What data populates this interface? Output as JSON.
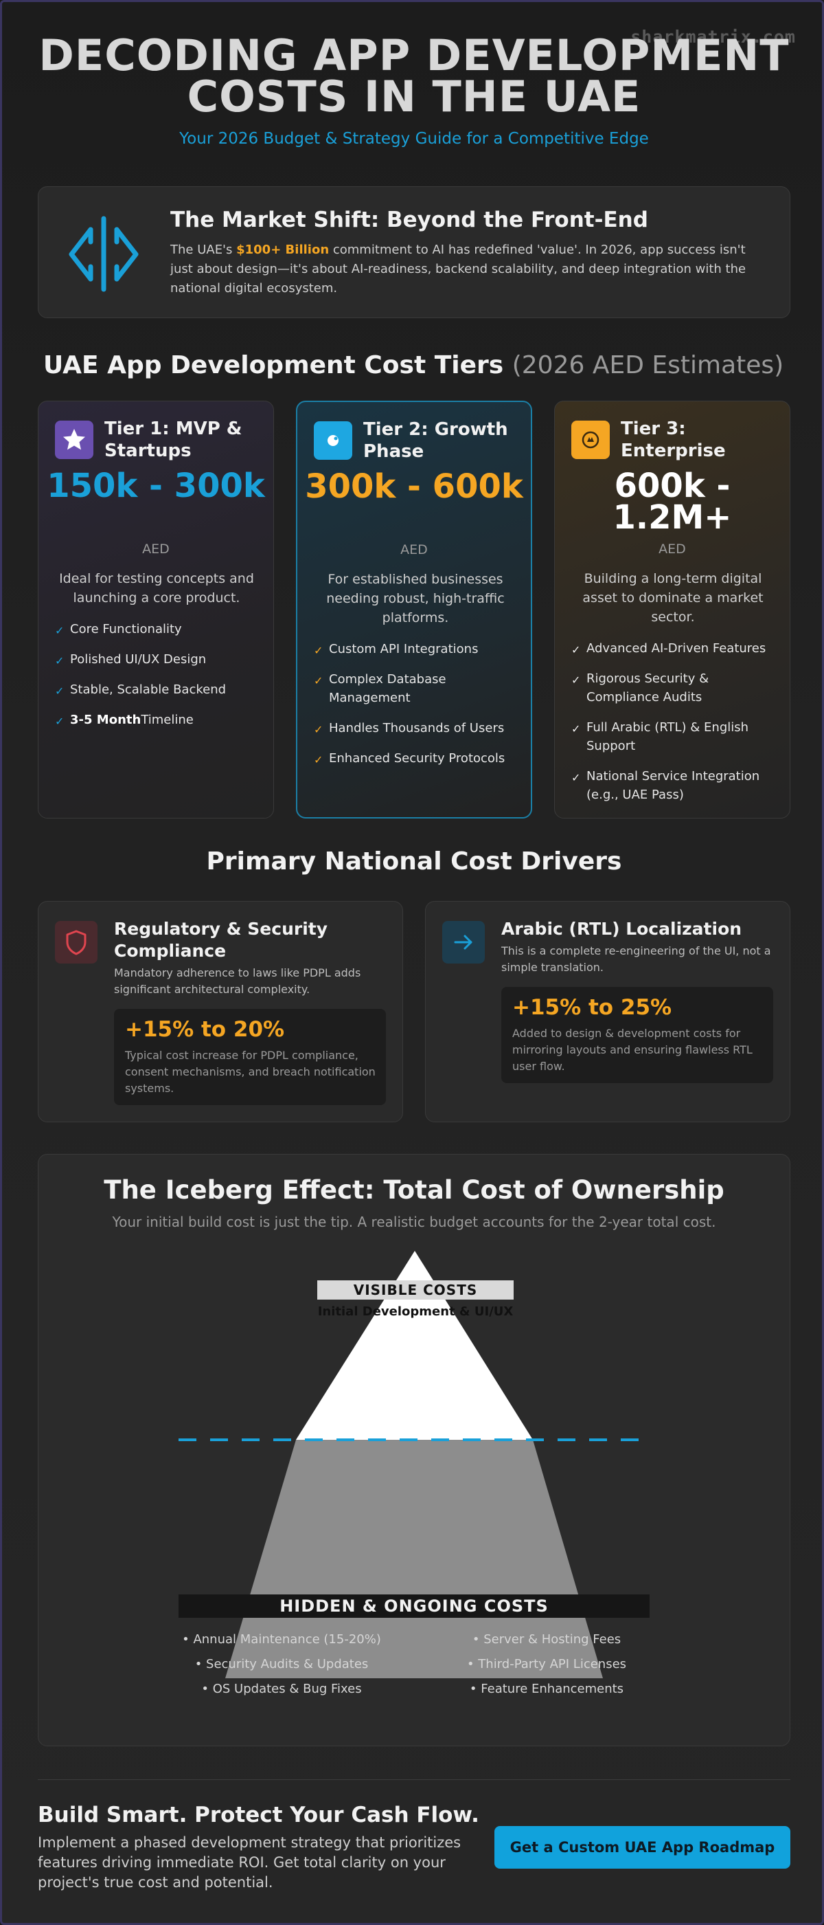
{
  "watermark": "sharkmatrix.com",
  "header": {
    "title": "DECODING APP DEVELOPMENT COSTS IN THE UAE",
    "subtitle": "Your 2026 Budget & Strategy Guide for a Competitive Edge"
  },
  "market_shift": {
    "icon": "split-code-icon",
    "title": "The Market Shift: Beyond the Front-End",
    "text_before": "The UAE's ",
    "highlight": "$100+ Billion",
    "text_after": " commitment to AI has redefined 'value'. In 2026, app success isn't just about design—it's about AI-readiness, backend scalability, and deep integration with the national digital ecosystem."
  },
  "tiers_section": {
    "title": "UAE App Development Cost Tiers",
    "title_suffix": "(2026 AED Estimates)"
  },
  "tiers": [
    {
      "icon": "star-icon",
      "name": "Tier 1: MVP & Startups",
      "price": "150k - 300k",
      "currency": "AED",
      "description": "Ideal for testing concepts and launching a core product.",
      "features": [
        "Core Functionality",
        "Polished UI/UX Design",
        "Stable, Scalable Backend"
      ],
      "timeline_bold": "3-5 Month",
      "timeline_rest": "Timeline",
      "accent": "#1aa0d8"
    },
    {
      "icon": "rocket-icon",
      "name": "Tier 2: Growth Phase",
      "price": "300k - 600k",
      "currency": "AED",
      "description": "For established businesses needing robust, high-traffic platforms.",
      "features": [
        "Custom API Integrations",
        "Complex Database Management",
        "Handles Thousands of Users",
        "Enhanced Security Protocols"
      ],
      "accent": "#f5a623"
    },
    {
      "icon": "crown-icon",
      "name": "Tier 3: Enterprise",
      "price": "600k - 1.2M+",
      "currency": "AED",
      "description": "Building a long-term digital asset to dominate a market sector.",
      "features": [
        "Advanced AI-Driven Features",
        "Rigorous Security & Compliance Audits",
        "Full Arabic (RTL) & English Support",
        "National Service Integration (e.g., UAE Pass)"
      ],
      "accent": "#ffffff"
    }
  ],
  "drivers": {
    "title": "Primary National Cost Drivers",
    "items": [
      {
        "icon": "shield-icon",
        "title": "Regulatory & Security Compliance",
        "description": "Mandatory adherence to laws like PDPL adds significant architectural complexity.",
        "impact": "+15% to 20%",
        "impact_description": "Typical cost increase for PDPL compliance, consent mechanisms, and breach notification systems."
      },
      {
        "icon": "arrow-right-icon",
        "title": "Arabic (RTL) Localization",
        "description": "This is a complete re-engineering of the UI, not a simple translation.",
        "impact": "+15% to 25%",
        "impact_description": "Added to design & development costs for mirroring layouts and ensuring flawless RTL user flow."
      }
    ]
  },
  "iceberg": {
    "title": "The Iceberg Effect: Total Cost of Ownership",
    "subtitle": "Your initial build cost is just the tip. A realistic budget accounts for the 2-year total cost.",
    "visible_label": "VISIBLE COSTS",
    "visible_sub": "Initial Development & UI/UX",
    "hidden_label": "HIDDEN & ONGOING COSTS",
    "hidden_left": [
      "• Annual Maintenance (15-20%)",
      "• Security Audits & Updates",
      "• OS Updates & Bug Fixes"
    ],
    "hidden_right": [
      "• Server & Hosting Fees",
      "• Third-Party API Licenses",
      "• Feature Enhancements"
    ],
    "colors": {
      "tip": "#ffffff",
      "submerged": "#9b9b9b",
      "waterline": "#1aa0d8"
    }
  },
  "cta": {
    "title": "Build Smart. Protect Your Cash Flow.",
    "description": "Implement a phased development strategy that prioritizes features driving immediate ROI. Get total clarity on your project's true cost and potential.",
    "button": "Get a Custom UAE App Roadmap"
  }
}
